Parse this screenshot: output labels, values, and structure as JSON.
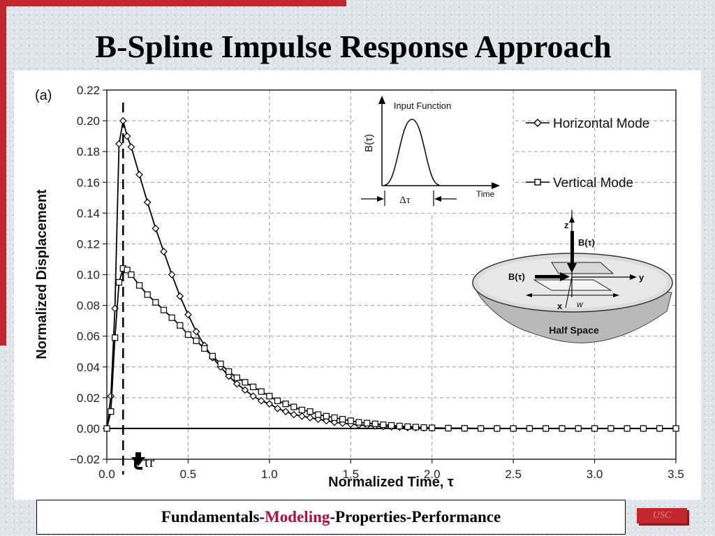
{
  "slide": {
    "title": "B-Spline Impulse Response Approach",
    "footer": {
      "part1": "Fundamentals-",
      "part2": "Modeling",
      "part3": "-Properties-Performance"
    },
    "badge": "USC",
    "accent_color": "#c1272d",
    "highlight_color": "#b0103a"
  },
  "chart_data": {
    "type": "line",
    "panel_label": "(a)",
    "xlabel": "Normalized Time, τ",
    "ylabel": "Normalized Displacement",
    "xlim": [
      0.0,
      3.5
    ],
    "ylim": [
      -0.02,
      0.22
    ],
    "xticks": [
      0.0,
      0.5,
      1.0,
      1.5,
      2.0,
      2.5,
      3.0,
      3.5
    ],
    "xtick_labels": [
      "0.0",
      "0.5",
      "1.0",
      "1.5",
      "2.0",
      "2.5",
      "3.0",
      "3.5"
    ],
    "yticks": [
      -0.02,
      0.0,
      0.02,
      0.04,
      0.06,
      0.08,
      0.1,
      0.12,
      0.14,
      0.16,
      0.18,
      0.2,
      0.22
    ],
    "ytick_labels": [
      "−0.02",
      "0.00",
      "0.02",
      "0.04",
      "0.06",
      "0.08",
      "0.10",
      "0.12",
      "0.14",
      "0.16",
      "0.18",
      "0.20",
      "0.22"
    ],
    "grid": true,
    "legend_position": "top-right",
    "series": [
      {
        "name": "Horizontal Mode",
        "marker": "diamond",
        "x": [
          0.0,
          0.025,
          0.05,
          0.075,
          0.1,
          0.125,
          0.15,
          0.2,
          0.25,
          0.3,
          0.35,
          0.4,
          0.45,
          0.5,
          0.55,
          0.6,
          0.65,
          0.7,
          0.75,
          0.8,
          0.85,
          0.9,
          0.95,
          1.0,
          1.05,
          1.1,
          1.15,
          1.2,
          1.25,
          1.3,
          1.35,
          1.4,
          1.45,
          1.5,
          1.55,
          1.6,
          1.65,
          1.7,
          1.75,
          1.8,
          1.85,
          1.9,
          1.95,
          2.0,
          2.1,
          2.2,
          2.3,
          2.4,
          2.5,
          2.6,
          2.7,
          2.8,
          2.9,
          3.0,
          3.1,
          3.2,
          3.3,
          3.4,
          3.5
        ],
        "values": [
          0.0,
          0.021,
          0.078,
          0.185,
          0.2,
          0.19,
          0.183,
          0.165,
          0.147,
          0.13,
          0.115,
          0.1,
          0.086,
          0.074,
          0.063,
          0.054,
          0.046,
          0.04,
          0.034,
          0.029,
          0.025,
          0.021,
          0.018,
          0.016,
          0.013,
          0.011,
          0.009,
          0.008,
          0.007,
          0.006,
          0.005,
          0.004,
          0.0034,
          0.0028,
          0.0023,
          0.0019,
          0.0016,
          0.0013,
          0.001,
          0.0008,
          0.0006,
          0.0005,
          0.0004,
          0.0003,
          0.0002,
          0.0001,
          0.0,
          0.0,
          0.0,
          0.0,
          0.0,
          0.0,
          0.0,
          0.0,
          0.0,
          0.0,
          0.0,
          0.0,
          0.0
        ]
      },
      {
        "name": "Vertical Mode",
        "marker": "square",
        "x": [
          0.0,
          0.025,
          0.05,
          0.075,
          0.1,
          0.125,
          0.15,
          0.2,
          0.25,
          0.3,
          0.35,
          0.4,
          0.45,
          0.5,
          0.55,
          0.6,
          0.65,
          0.7,
          0.75,
          0.8,
          0.85,
          0.9,
          0.95,
          1.0,
          1.05,
          1.1,
          1.15,
          1.2,
          1.25,
          1.3,
          1.35,
          1.4,
          1.45,
          1.5,
          1.55,
          1.6,
          1.65,
          1.7,
          1.75,
          1.8,
          1.85,
          1.9,
          1.95,
          2.0,
          2.1,
          2.2,
          2.3,
          2.4,
          2.5,
          2.6,
          2.7,
          2.8,
          2.9,
          3.0,
          3.1,
          3.2,
          3.3,
          3.4,
          3.5
        ],
        "values": [
          0.0,
          0.011,
          0.059,
          0.095,
          0.104,
          0.103,
          0.1,
          0.093,
          0.087,
          0.082,
          0.077,
          0.072,
          0.067,
          0.061,
          0.057,
          0.052,
          0.047,
          0.042,
          0.037,
          0.033,
          0.03,
          0.027,
          0.024,
          0.021,
          0.018,
          0.016,
          0.014,
          0.012,
          0.011,
          0.009,
          0.008,
          0.007,
          0.006,
          0.005,
          0.004,
          0.0035,
          0.003,
          0.0024,
          0.002,
          0.0016,
          0.0012,
          0.0009,
          0.0006,
          0.0004,
          0.0002,
          0.0001,
          0.0,
          0.0,
          0.0,
          0.0,
          0.0,
          0.0,
          0.0,
          0.0,
          0.0,
          0.0,
          0.0,
          0.0,
          0.0
        ]
      }
    ],
    "annotations": {
      "tau_r_label": "τr",
      "tau_r_x": 0.1,
      "input_function": {
        "title": "Input Function",
        "ylabel": "B(τ)",
        "xlabel": "Time",
        "width_label": "Δτ"
      },
      "half_space": {
        "load_vertical": "B(τ)",
        "load_horizontal": "B(τ)",
        "axis_z": "z",
        "axis_y": "y",
        "axis_x": "x",
        "width": "w",
        "label": "Half Space"
      }
    }
  }
}
